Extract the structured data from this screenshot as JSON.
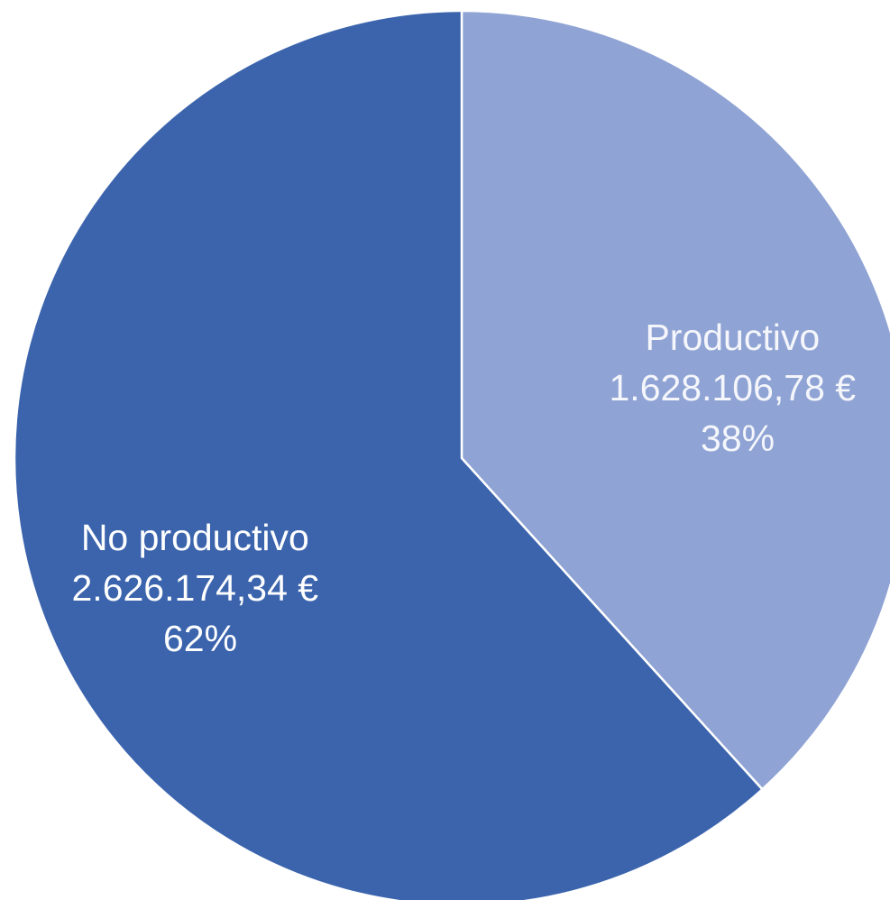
{
  "chart_data": {
    "type": "pie",
    "title": "",
    "slices": [
      {
        "name": "Productivo",
        "value": 1628106.78,
        "value_label": "1.628.106,78 €",
        "percent_label": "38%",
        "color": "#8FA3D4"
      },
      {
        "name": "No productivo",
        "value": 2626174.34,
        "value_label": "2.626.174,34 €",
        "percent_label": "62%",
        "color": "#3B64AD"
      }
    ],
    "start_angle": "12 o'clock",
    "direction": "clockwise",
    "legend": "none",
    "separator_color": "#ffffff"
  }
}
